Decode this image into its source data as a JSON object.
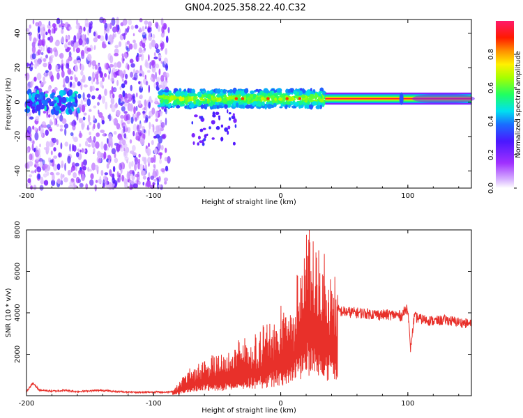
{
  "title": "GN04.2025.358.22.40.C32",
  "colors": {
    "snr_line": "#e8302a",
    "axis": "#000000",
    "bg": "#ffffff"
  },
  "chart_data": [
    {
      "type": "heatmap",
      "name": "spectrogram",
      "xlabel": "Height of straight line (km)",
      "ylabel": "Frequency (Hz)",
      "xlim": [
        -200,
        150
      ],
      "ylim": [
        -50,
        48
      ],
      "x_ticks": [
        -200,
        -100,
        0,
        100
      ],
      "y_ticks": [
        -40,
        -20,
        0,
        20,
        40
      ],
      "x_tick_labels": [
        "-200",
        "-100",
        "0",
        "100"
      ],
      "y_tick_labels": [
        "-40",
        "-20",
        "0",
        "20",
        "40"
      ],
      "colorbar": {
        "label": "Normalized spectral amplitude",
        "range": [
          0,
          1
        ],
        "ticks": [
          0.0,
          0.2,
          0.4,
          0.6,
          0.8
        ],
        "tick_labels": [
          "0.0",
          "0.2",
          "0.4",
          "0.6",
          "0.8"
        ],
        "colormap": "purple-blue-cyan-green-yellow-orange-red-magenta"
      },
      "regions": [
        {
          "x_range": [
            -200,
            -88
          ],
          "description": "broadband noise",
          "amplitude": 0.1
        },
        {
          "x_range": [
            -95,
            35
          ],
          "freq_center": 2,
          "amplitude": 0.45
        },
        {
          "x_range": [
            35,
            150
          ],
          "freq_center": 2,
          "amplitude": 0.9
        }
      ]
    },
    {
      "type": "line",
      "name": "snr",
      "xlabel": "Height of straight line (km)",
      "ylabel": "SNR (10 * v/v)",
      "xlim": [
        -200,
        150
      ],
      "ylim": [
        0,
        8000
      ],
      "x_ticks": [
        -200,
        -100,
        0,
        100
      ],
      "y_ticks": [
        2000,
        4000,
        6000,
        8000
      ],
      "x_tick_labels": [
        "-200",
        "-100",
        "0",
        "100"
      ],
      "y_tick_labels": [
        "2000",
        "4000",
        "6000",
        "8000"
      ],
      "series": [
        {
          "name": "SNR",
          "x": [
            -200,
            -195,
            -190,
            -180,
            -170,
            -160,
            -150,
            -140,
            -130,
            -120,
            -110,
            -100,
            -90,
            -85,
            -80,
            -75,
            -70,
            -60,
            -50,
            -40,
            -30,
            -20,
            -10,
            0,
            10,
            20,
            30,
            40,
            45,
            50,
            60,
            70,
            80,
            90,
            95,
            100,
            102,
            105,
            110,
            120,
            130,
            140,
            150
          ],
          "values": [
            200,
            600,
            280,
            220,
            260,
            200,
            240,
            260,
            200,
            180,
            160,
            180,
            170,
            220,
            500,
            900,
            1200,
            1400,
            1600,
            1800,
            2100,
            2400,
            2800,
            3300,
            4000,
            6800,
            5600,
            5200,
            4100,
            4050,
            4000,
            3950,
            3900,
            3900,
            3850,
            4300,
            2200,
            3800,
            3700,
            3600,
            3650,
            3550,
            3450
          ]
        }
      ]
    }
  ]
}
